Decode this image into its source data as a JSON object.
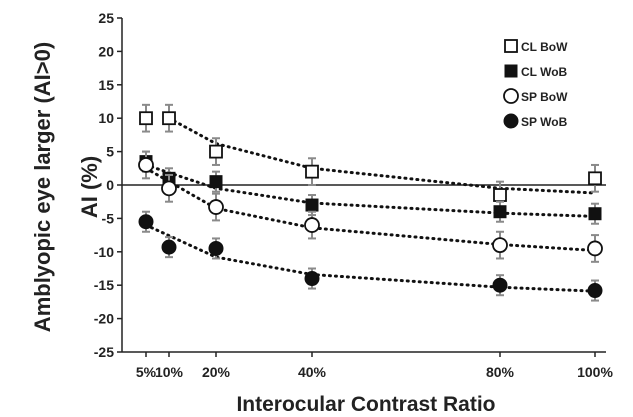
{
  "chart_data": {
    "type": "scatter",
    "xlabel": "Interocular Contrast Ratio",
    "ylabel_line1": "Amblyopic eye larger (AI>0)",
    "ylabel_line2": "AI (%)",
    "x_ticks": [
      {
        "value": 5,
        "label": "5%"
      },
      {
        "value": 10,
        "label": "10%"
      },
      {
        "value": 20,
        "label": "20%"
      },
      {
        "value": 40,
        "label": "40%"
      },
      {
        "value": 80,
        "label": "80%"
      },
      {
        "value": 100,
        "label": "100%"
      }
    ],
    "y_ticks": [
      "25",
      "20",
      "15",
      "10",
      "5",
      "0",
      "-5",
      "-10",
      "-15",
      "-20",
      "-25"
    ],
    "ylim": [
      -25,
      25
    ],
    "x_points": [
      5,
      10,
      20,
      40,
      80,
      100
    ],
    "series": [
      {
        "name": "CL BoW",
        "marker": "open-square",
        "values": [
          10,
          10,
          5,
          2,
          -1.5,
          1
        ],
        "errors": [
          2,
          2,
          2,
          2,
          2,
          2
        ],
        "trend": [
          [
            10,
            10
          ],
          [
            20,
            6.2
          ],
          [
            40,
            2.5
          ],
          [
            80,
            -0.5
          ],
          [
            100,
            -1.2
          ]
        ]
      },
      {
        "name": "CL WoB",
        "marker": "filled-square",
        "values": [
          3.5,
          1,
          0.5,
          -3,
          -4,
          -4.3
        ],
        "errors": [
          1.5,
          1.5,
          1.5,
          1.5,
          1.5,
          1.5
        ],
        "trend": [
          [
            5,
            3
          ],
          [
            20,
            -0.5
          ],
          [
            40,
            -2.7
          ],
          [
            80,
            -4.2
          ],
          [
            100,
            -4.7
          ]
        ]
      },
      {
        "name": "SP BoW",
        "marker": "open-circle",
        "values": [
          3,
          -0.5,
          -3.3,
          -6,
          -9,
          -9.5
        ],
        "errors": [
          2,
          2,
          2,
          2,
          2,
          2
        ],
        "trend": [
          [
            5,
            2.5
          ],
          [
            20,
            -3.5
          ],
          [
            40,
            -6.4
          ],
          [
            80,
            -8.9
          ],
          [
            100,
            -9.8
          ]
        ]
      },
      {
        "name": "SP WoB",
        "marker": "filled-circle",
        "values": [
          -5.5,
          -9.3,
          -9.5,
          -14,
          -15,
          -15.8
        ],
        "errors": [
          1.5,
          1.5,
          1.5,
          1.5,
          1.5,
          1.5
        ],
        "trend": [
          [
            5,
            -6
          ],
          [
            20,
            -10.8
          ],
          [
            40,
            -13.4
          ],
          [
            80,
            -15.3
          ],
          [
            100,
            -15.9
          ]
        ]
      }
    ],
    "legend_position": "right"
  }
}
